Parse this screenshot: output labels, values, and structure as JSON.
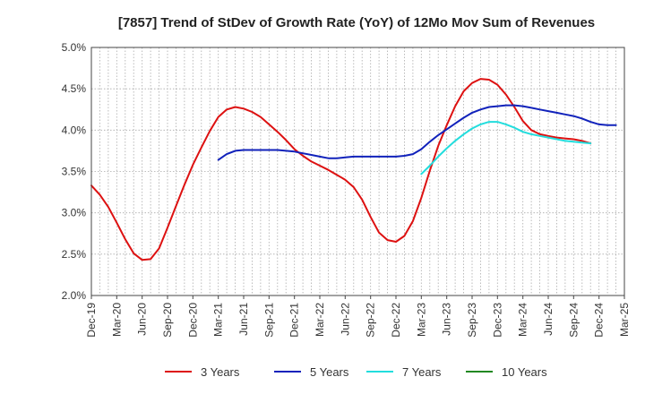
{
  "chart_data": {
    "type": "line",
    "title": "[7857]  Trend of StDev of Growth Rate (YoY) of 12Mo Mov Sum of Revenues",
    "xlabel": "",
    "ylabel": "",
    "ylim": [
      2.0,
      5.0
    ],
    "y_ticks": [
      "2.0%",
      "2.5%",
      "3.0%",
      "3.5%",
      "4.0%",
      "4.5%",
      "5.0%"
    ],
    "y_tick_values": [
      2.0,
      2.5,
      3.0,
      3.5,
      4.0,
      4.5,
      5.0
    ],
    "x_ticks": [
      "Dec-19",
      "Mar-20",
      "Jun-20",
      "Sep-20",
      "Dec-20",
      "Mar-21",
      "Jun-21",
      "Sep-21",
      "Dec-21",
      "Mar-22",
      "Jun-22",
      "Sep-22",
      "Dec-22",
      "Mar-23",
      "Jun-23",
      "Sep-23",
      "Dec-23",
      "Mar-24",
      "Jun-24",
      "Sep-24",
      "Dec-24",
      "Mar-25"
    ],
    "x_start": "Dec-19",
    "months_total": 63,
    "grid": true,
    "legend_position": "bottom",
    "series": [
      {
        "name": "3 Years",
        "color": "#dd1111",
        "start_index": 0,
        "values": [
          3.33,
          3.22,
          3.07,
          2.88,
          2.68,
          2.51,
          2.43,
          2.44,
          2.57,
          2.82,
          3.08,
          3.34,
          3.58,
          3.79,
          3.99,
          4.16,
          4.25,
          4.28,
          4.26,
          4.22,
          4.16,
          4.07,
          3.98,
          3.88,
          3.77,
          3.69,
          3.62,
          3.57,
          3.52,
          3.46,
          3.4,
          3.31,
          3.16,
          2.95,
          2.76,
          2.67,
          2.65,
          2.72,
          2.9,
          3.18,
          3.51,
          3.81,
          4.06,
          4.29,
          4.47,
          4.57,
          4.62,
          4.61,
          4.55,
          4.43,
          4.28,
          4.11,
          4.0,
          3.95,
          3.93,
          3.91,
          3.9,
          3.89,
          3.87,
          3.84
        ]
      },
      {
        "name": "5 Years",
        "color": "#1122bb",
        "start_index": 15,
        "values": [
          3.64,
          3.71,
          3.75,
          3.76,
          3.76,
          3.76,
          3.76,
          3.76,
          3.75,
          3.74,
          3.72,
          3.7,
          3.68,
          3.66,
          3.66,
          3.67,
          3.68,
          3.68,
          3.68,
          3.68,
          3.68,
          3.68,
          3.69,
          3.71,
          3.77,
          3.86,
          3.94,
          4.01,
          4.08,
          4.15,
          4.21,
          4.25,
          4.28,
          4.29,
          4.3,
          4.3,
          4.29,
          4.27,
          4.25,
          4.23,
          4.21,
          4.19,
          4.17,
          4.14,
          4.1,
          4.07,
          4.06,
          4.06
        ]
      },
      {
        "name": "7 Years",
        "color": "#22dddd",
        "start_index": 39,
        "values": [
          3.47,
          3.57,
          3.68,
          3.78,
          3.87,
          3.95,
          4.02,
          4.07,
          4.1,
          4.1,
          4.07,
          4.03,
          3.98,
          3.95,
          3.93,
          3.91,
          3.89,
          3.87,
          3.86,
          3.85,
          3.84
        ]
      },
      {
        "name": "10 Years",
        "color": "#228822",
        "start_index": 0,
        "values": []
      }
    ]
  }
}
